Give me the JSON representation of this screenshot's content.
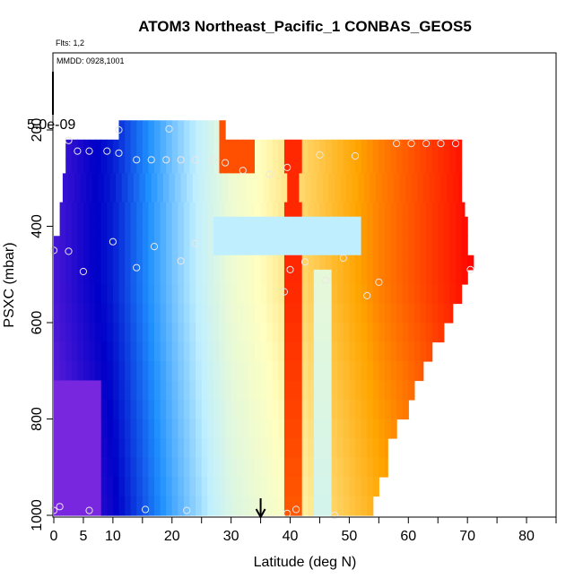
{
  "chart_data": {
    "type": "heatmap",
    "title": "ATOM3 Northeast_Pacific_1 CONBAS_GEOS5",
    "flights_label": "Flts: 1,2",
    "dates_label": "MMDD: 0928,1001",
    "xlabel": "Latitude (deg N)",
    "ylabel": "PSXC (mbar)",
    "legend_value_label": "5.0e-09",
    "xlim": [
      0,
      85
    ],
    "ylim": [
      1000,
      40
    ],
    "y_reversed": true,
    "x_ticks": [
      0,
      5,
      10,
      20,
      30,
      40,
      50,
      60,
      70,
      80
    ],
    "x_minor_ticks": [
      15,
      25,
      35,
      45,
      55,
      65,
      75,
      85
    ],
    "y_ticks": [
      200,
      400,
      600,
      800,
      1000
    ],
    "grid": false,
    "arrow_marker_latitude": 35,
    "colormap": [
      "#8a2be2",
      "#0000c8",
      "#1e90ff",
      "#bfefff",
      "#ffffc0",
      "#ffa500",
      "#ff0000"
    ],
    "pressure_bands": [
      {
        "p_top": 180,
        "p_bottom": 220,
        "lat_min": 11,
        "lat_max": 29
      },
      {
        "p_top": 220,
        "p_bottom": 260,
        "lat_min": 2,
        "lat_max": 69
      },
      {
        "p_top": 260,
        "p_bottom": 290,
        "lat_min": 2,
        "lat_max": 69
      },
      {
        "p_top": 290,
        "p_bottom": 320,
        "lat_min": 1.5,
        "lat_max": 69
      },
      {
        "p_top": 320,
        "p_bottom": 350,
        "lat_min": 1.5,
        "lat_max": 69
      },
      {
        "p_top": 350,
        "p_bottom": 380,
        "lat_min": 1,
        "lat_max": 69.5
      },
      {
        "p_top": 380,
        "p_bottom": 420,
        "lat_min": 1,
        "lat_max": 70
      },
      {
        "p_top": 420,
        "p_bottom": 460,
        "lat_min": 0,
        "lat_max": 70
      },
      {
        "p_top": 460,
        "p_bottom": 490,
        "lat_min": 0,
        "lat_max": 71
      },
      {
        "p_top": 490,
        "p_bottom": 520,
        "lat_min": 0,
        "lat_max": 70
      },
      {
        "p_top": 520,
        "p_bottom": 560,
        "lat_min": 0,
        "lat_max": 69
      },
      {
        "p_top": 560,
        "p_bottom": 600,
        "lat_min": 0,
        "lat_max": 67.5
      },
      {
        "p_top": 600,
        "p_bottom": 640,
        "lat_min": 0,
        "lat_max": 66
      },
      {
        "p_top": 640,
        "p_bottom": 680,
        "lat_min": 0,
        "lat_max": 64
      },
      {
        "p_top": 680,
        "p_bottom": 720,
        "lat_min": 0,
        "lat_max": 62.5
      },
      {
        "p_top": 720,
        "p_bottom": 760,
        "lat_min": 0,
        "lat_max": 61
      },
      {
        "p_top": 760,
        "p_bottom": 800,
        "lat_min": 0,
        "lat_max": 60
      },
      {
        "p_top": 800,
        "p_bottom": 840,
        "lat_min": 0,
        "lat_max": 58
      },
      {
        "p_top": 840,
        "p_bottom": 880,
        "lat_min": 0,
        "lat_max": 56.5
      },
      {
        "p_top": 880,
        "p_bottom": 920,
        "lat_min": 0,
        "lat_max": 56.5
      },
      {
        "p_top": 920,
        "p_bottom": 960,
        "lat_min": 0,
        "lat_max": 55
      },
      {
        "p_top": 960,
        "p_bottom": 1000,
        "lat_min": 0,
        "lat_max": 54
      }
    ],
    "observations": [
      {
        "lat": 11,
        "p": 200
      },
      {
        "lat": 19.5,
        "p": 198
      },
      {
        "lat": 2.5,
        "p": 222
      },
      {
        "lat": 4,
        "p": 244
      },
      {
        "lat": 6,
        "p": 244
      },
      {
        "lat": 9,
        "p": 244
      },
      {
        "lat": 11,
        "p": 248
      },
      {
        "lat": 14,
        "p": 262
      },
      {
        "lat": 16.5,
        "p": 262
      },
      {
        "lat": 19,
        "p": 262
      },
      {
        "lat": 21.5,
        "p": 262
      },
      {
        "lat": 24,
        "p": 262
      },
      {
        "lat": 27,
        "p": 262
      },
      {
        "lat": 29,
        "p": 268
      },
      {
        "lat": 32,
        "p": 284
      },
      {
        "lat": 36.5,
        "p": 292
      },
      {
        "lat": 39.5,
        "p": 278
      },
      {
        "lat": 45,
        "p": 252
      },
      {
        "lat": 51,
        "p": 254
      },
      {
        "lat": 58,
        "p": 228
      },
      {
        "lat": 60.5,
        "p": 228
      },
      {
        "lat": 63,
        "p": 228
      },
      {
        "lat": 65.5,
        "p": 228
      },
      {
        "lat": 68,
        "p": 228
      },
      {
        "lat": 10,
        "p": 432
      },
      {
        "lat": 17,
        "p": 442
      },
      {
        "lat": 24,
        "p": 436
      },
      {
        "lat": 0,
        "p": 450
      },
      {
        "lat": 2.5,
        "p": 452
      },
      {
        "lat": 5,
        "p": 494
      },
      {
        "lat": 14,
        "p": 486
      },
      {
        "lat": 21.5,
        "p": 472
      },
      {
        "lat": 40,
        "p": 490
      },
      {
        "lat": 42.5,
        "p": 474
      },
      {
        "lat": 49,
        "p": 466
      },
      {
        "lat": 39,
        "p": 536
      },
      {
        "lat": 46,
        "p": 512
      },
      {
        "lat": 53,
        "p": 544
      },
      {
        "lat": 55,
        "p": 516
      },
      {
        "lat": 70.5,
        "p": 490
      },
      {
        "lat": 1,
        "p": 982
      },
      {
        "lat": 0,
        "p": 990
      },
      {
        "lat": 6,
        "p": 990
      },
      {
        "lat": 15.5,
        "p": 988
      },
      {
        "lat": 22.5,
        "p": 990
      },
      {
        "lat": 39.5,
        "p": 996
      },
      {
        "lat": 41,
        "p": 988
      },
      {
        "lat": 47.5,
        "p": 1000
      }
    ]
  }
}
